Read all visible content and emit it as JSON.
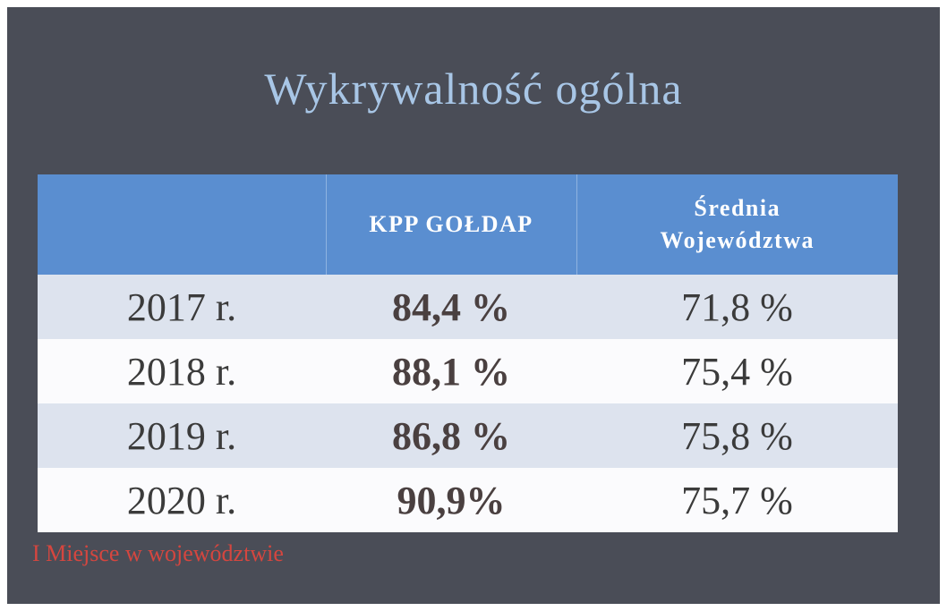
{
  "title": "Wykrywalność ogólna",
  "table": {
    "header": [
      "KPP GOŁDAP",
      "Średnia Województwa"
    ],
    "rows": [
      [
        "2017 r.",
        "84,4 %",
        "71,8 %"
      ],
      [
        "2018 r.",
        "88,1 %",
        "75,4 %"
      ],
      [
        "2019 r.",
        "86,8 %",
        "75,8 %"
      ],
      [
        "2020 r.",
        "90,9%",
        "75,7 %"
      ]
    ]
  },
  "footer": "I Miejsce w województwie"
}
